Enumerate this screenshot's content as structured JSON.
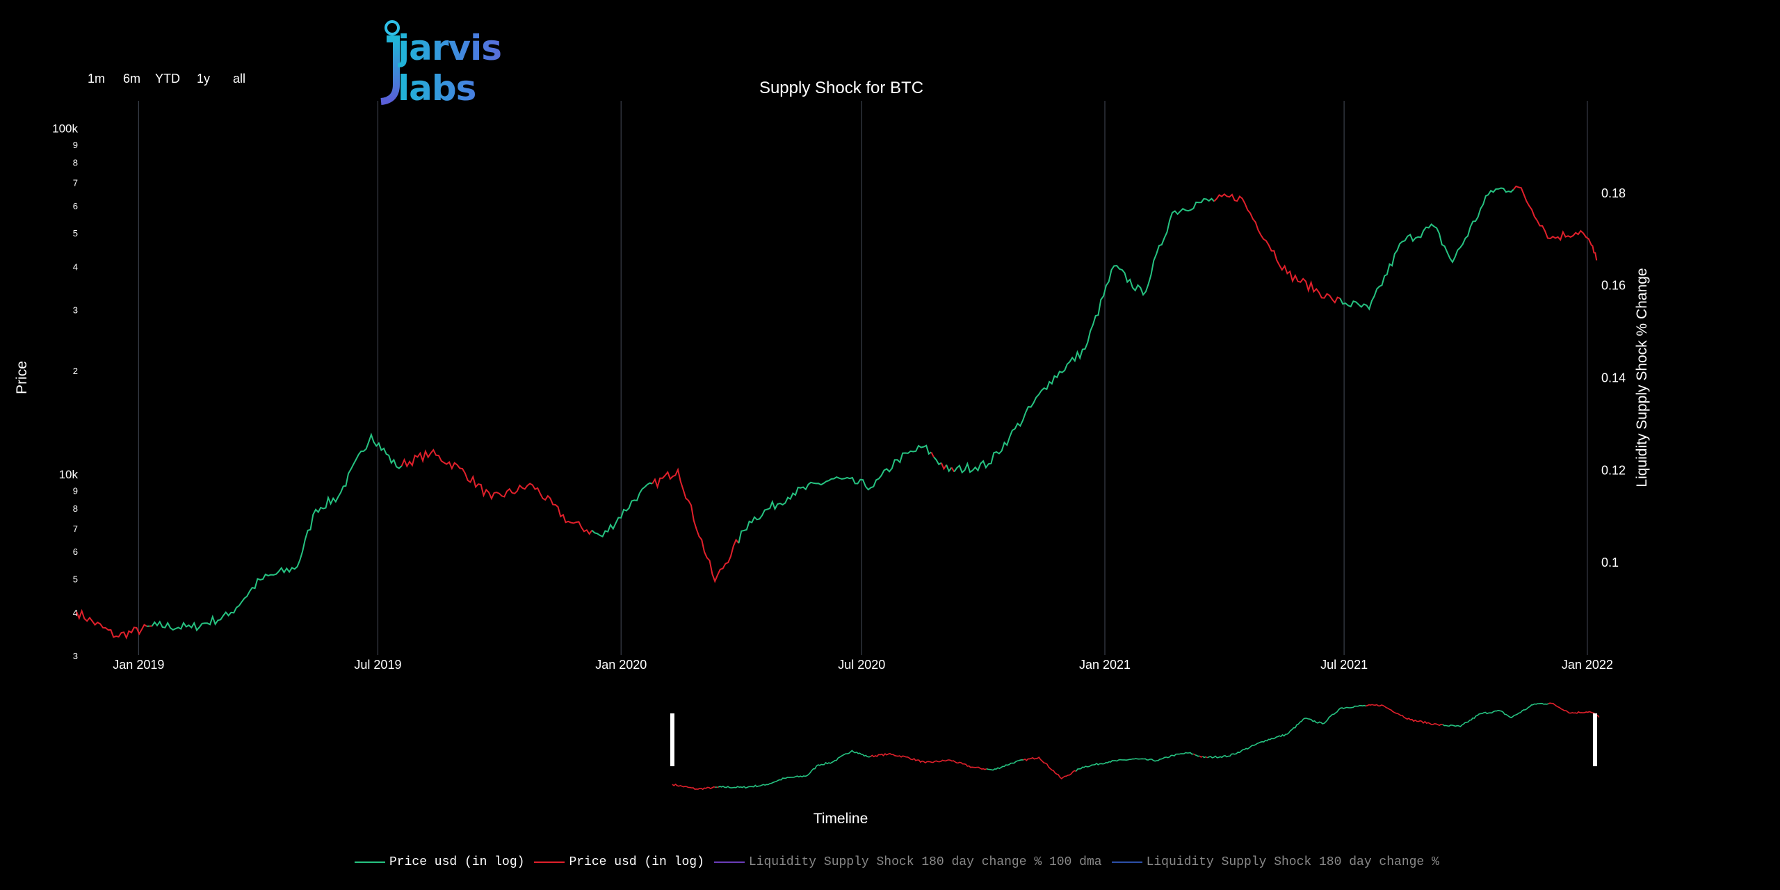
{
  "range_selector": [
    "1m",
    "6m",
    "YTD",
    "1y",
    "all"
  ],
  "logo": {
    "text": "jarvis labs"
  },
  "chart_data": {
    "type": "line",
    "title": "Supply Shock for BTC",
    "ylabel_left": "Price",
    "ylabel_right": "Liquidity Supply Shock % Change",
    "xlabel": "Timeline",
    "y_left_scale": "log",
    "y_left_range": [
      3000,
      120000
    ],
    "y_left_ticks_major": [
      "100k",
      "10k"
    ],
    "y_left_ticks_minor_upper": [
      "9",
      "8",
      "7",
      "6",
      "5",
      "4",
      "3",
      "2"
    ],
    "y_left_ticks_minor_lower": [
      "9",
      "8",
      "7",
      "6",
      "5",
      "4",
      "3"
    ],
    "y_right_ticks": [
      "0.18",
      "0.16",
      "0.14",
      "0.12",
      "0.1"
    ],
    "y_right_range": [
      0.08,
      0.2
    ],
    "x_range": [
      "2018-11-15",
      "2022-01-10"
    ],
    "x_ticks": [
      "Jan 2019",
      "Jul 2019",
      "Jan 2020",
      "Jul 2020",
      "Jan 2021",
      "Jul 2021",
      "Jan 2022"
    ],
    "grid": "vertical",
    "legend_position": "bottom",
    "colors": {
      "up": "#26c281",
      "down": "#e0202b",
      "ls100": "#6a3db8",
      "ls": "#2c4fa8"
    },
    "series": [
      {
        "name": "Price usd (in log)",
        "color": "#26c281",
        "points": [
          [
            "2018-11-15",
            4000
          ],
          [
            "2018-12-15",
            3400
          ],
          [
            "2019-01-15",
            3650
          ],
          [
            "2019-02-10",
            3600
          ],
          [
            "2019-03-10",
            3900
          ],
          [
            "2019-04-03",
            4950
          ],
          [
            "2019-05-01",
            5400
          ],
          [
            "2019-05-15",
            7900
          ],
          [
            "2019-06-01",
            8600
          ],
          [
            "2019-06-26",
            13000
          ],
          [
            "2019-07-15",
            10500
          ],
          [
            "2019-08-10",
            11500
          ],
          [
            "2019-09-01",
            10400
          ],
          [
            "2019-09-25",
            8500
          ],
          [
            "2019-10-26",
            9300
          ],
          [
            "2019-11-22",
            7300
          ],
          [
            "2019-12-18",
            6600
          ],
          [
            "2020-01-15",
            8800
          ],
          [
            "2020-02-13",
            10300
          ],
          [
            "2020-03-12",
            4900
          ],
          [
            "2020-04-07",
            7300
          ],
          [
            "2020-05-10",
            8800
          ],
          [
            "2020-06-10",
            9700
          ],
          [
            "2020-07-10",
            9200
          ],
          [
            "2020-07-28",
            11000
          ],
          [
            "2020-08-17",
            12000
          ],
          [
            "2020-09-05",
            10200
          ],
          [
            "2020-10-05",
            10700
          ],
          [
            "2020-10-21",
            12800
          ],
          [
            "2020-11-20",
            18500
          ],
          [
            "2020-12-17",
            23000
          ],
          [
            "2021-01-08",
            40000
          ],
          [
            "2021-01-30",
            33000
          ],
          [
            "2021-02-21",
            57000
          ],
          [
            "2021-03-13",
            61000
          ],
          [
            "2021-04-13",
            63500
          ],
          [
            "2021-05-19",
            38000
          ],
          [
            "2021-06-22",
            32000
          ],
          [
            "2021-07-20",
            30000
          ],
          [
            "2021-08-14",
            47000
          ],
          [
            "2021-09-07",
            52000
          ],
          [
            "2021-09-21",
            41000
          ],
          [
            "2021-10-20",
            66000
          ],
          [
            "2021-11-10",
            67500
          ],
          [
            "2021-12-04",
            48000
          ],
          [
            "2021-12-27",
            50500
          ],
          [
            "2022-01-04",
            46000
          ],
          [
            "2022-01-08",
            41500
          ]
        ]
      },
      {
        "name": "Price usd (in log)",
        "color": "#e0202b"
      },
      {
        "name": "Liquidity Supply Shock 180 day change % 100 dma",
        "color": "#6a3db8"
      },
      {
        "name": "Liquidity Supply Shock 180 day change %",
        "color": "#2c4fa8"
      }
    ]
  }
}
